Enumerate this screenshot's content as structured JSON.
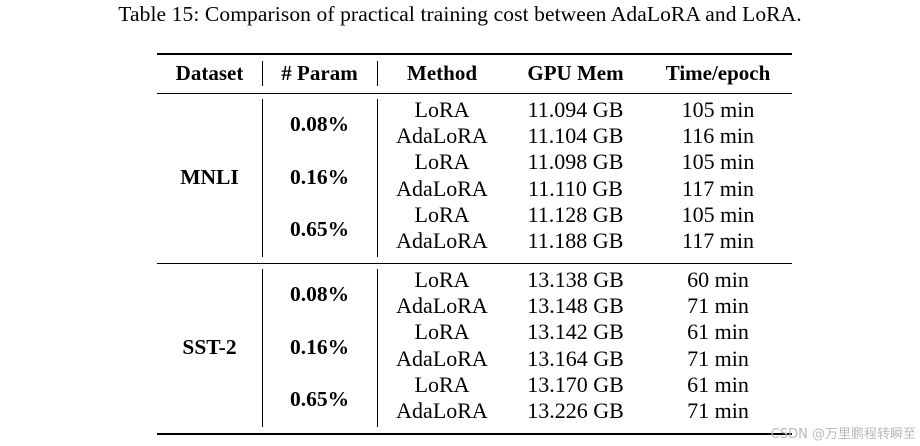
{
  "caption": "Table 15: Comparison of practical training cost between AdaLoRA and LoRA.",
  "headers": {
    "dataset": "Dataset",
    "param": "# Param",
    "method": "Method",
    "gpu_mem": "GPU Mem",
    "time_epoch": "Time/epoch"
  },
  "groups": [
    {
      "dataset": "MNLI",
      "params": [
        "0.08%",
        "0.16%",
        "0.65%"
      ],
      "rows": [
        {
          "method": "LoRA",
          "gpu": "11.094 GB",
          "time": "105 min"
        },
        {
          "method": "AdaLoRA",
          "gpu": "11.104 GB",
          "time": "116 min"
        },
        {
          "method": "LoRA",
          "gpu": "11.098 GB",
          "time": "105 min"
        },
        {
          "method": "AdaLoRA",
          "gpu": "11.110 GB",
          "time": "117 min"
        },
        {
          "method": "LoRA",
          "gpu": "11.128 GB",
          "time": "105 min"
        },
        {
          "method": "AdaLoRA",
          "gpu": "11.188 GB",
          "time": "117 min"
        }
      ]
    },
    {
      "dataset": "SST-2",
      "params": [
        "0.08%",
        "0.16%",
        "0.65%"
      ],
      "rows": [
        {
          "method": "LoRA",
          "gpu": "13.138 GB",
          "time": "60 min"
        },
        {
          "method": "AdaLoRA",
          "gpu": "13.148 GB",
          "time": "71 min"
        },
        {
          "method": "LoRA",
          "gpu": "13.142 GB",
          "time": "61 min"
        },
        {
          "method": "AdaLoRA",
          "gpu": "13.164 GB",
          "time": "71 min"
        },
        {
          "method": "LoRA",
          "gpu": "13.170 GB",
          "time": "61 min"
        },
        {
          "method": "AdaLoRA",
          "gpu": "13.226 GB",
          "time": "71 min"
        }
      ]
    }
  ],
  "watermark": "CSDN @万里鹏程转瞬至"
}
